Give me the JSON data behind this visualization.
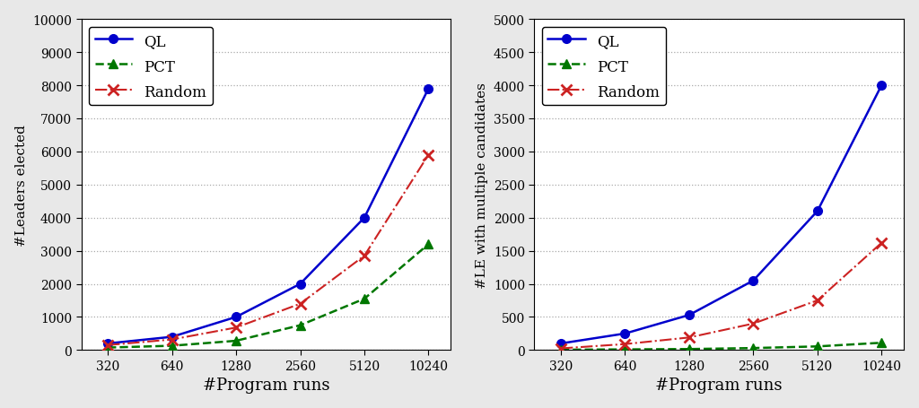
{
  "x": [
    320,
    640,
    1280,
    2560,
    5120,
    10240
  ],
  "left": {
    "ylabel": "#Leaders elected",
    "xlabel": "#Program runs",
    "ylim": [
      0,
      10000
    ],
    "yticks": [
      0,
      1000,
      2000,
      3000,
      4000,
      5000,
      6000,
      7000,
      8000,
      9000,
      10000
    ],
    "QL": [
      200,
      400,
      1000,
      2000,
      4000,
      7900
    ],
    "PCT": [
      75,
      130,
      280,
      750,
      1550,
      3200
    ],
    "Random": [
      150,
      320,
      680,
      1400,
      2850,
      5900
    ]
  },
  "right": {
    "ylabel": "#LE with multiple candidates",
    "xlabel": "#Program runs",
    "ylim": [
      0,
      5000
    ],
    "yticks": [
      0,
      500,
      1000,
      1500,
      2000,
      2500,
      3000,
      3500,
      4000,
      4500,
      5000
    ],
    "QL": [
      100,
      250,
      530,
      1050,
      2100,
      4000
    ],
    "PCT": [
      5,
      10,
      15,
      30,
      55,
      110
    ],
    "Random": [
      25,
      90,
      190,
      400,
      750,
      1620
    ]
  },
  "QL_color": "#0000cc",
  "PCT_color": "#007700",
  "Random_color": "#cc2222",
  "plot_bg": "#ffffff",
  "fig_bg": "#e8e8e8",
  "grid_color": "#aaaaaa"
}
